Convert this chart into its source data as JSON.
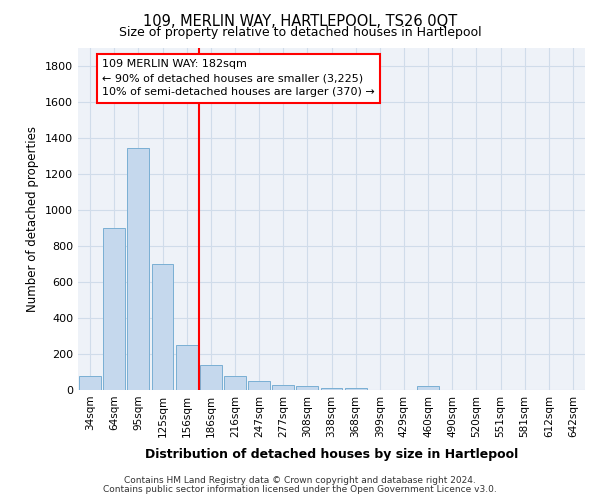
{
  "title": "109, MERLIN WAY, HARTLEPOOL, TS26 0QT",
  "subtitle": "Size of property relative to detached houses in Hartlepool",
  "xlabel": "Distribution of detached houses by size in Hartlepool",
  "ylabel": "Number of detached properties",
  "categories": [
    "34sqm",
    "64sqm",
    "95sqm",
    "125sqm",
    "156sqm",
    "186sqm",
    "216sqm",
    "247sqm",
    "277sqm",
    "308sqm",
    "338sqm",
    "368sqm",
    "399sqm",
    "429sqm",
    "460sqm",
    "490sqm",
    "520sqm",
    "551sqm",
    "581sqm",
    "612sqm",
    "642sqm"
  ],
  "values": [
    80,
    900,
    1340,
    700,
    250,
    140,
    80,
    50,
    25,
    20,
    13,
    10,
    0,
    0,
    20,
    0,
    0,
    0,
    0,
    0,
    0
  ],
  "bar_color": "#c5d8ed",
  "bar_edge_color": "#7aafd4",
  "vline_index": 5,
  "ylim": [
    0,
    1900
  ],
  "yticks": [
    0,
    200,
    400,
    600,
    800,
    1000,
    1200,
    1400,
    1600,
    1800
  ],
  "grid_color": "#d0dcea",
  "background_color": "#eef2f8",
  "annotation_line1": "109 MERLIN WAY: 182sqm",
  "annotation_line2": "← 90% of detached houses are smaller (3,225)",
  "annotation_line3": "10% of semi-detached houses are larger (370) →",
  "footer1": "Contains HM Land Registry data © Crown copyright and database right 2024.",
  "footer2": "Contains public sector information licensed under the Open Government Licence v3.0."
}
